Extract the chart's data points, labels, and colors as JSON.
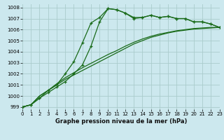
{
  "title": "Graphe pression niveau de la mer (hPa)",
  "bg_color": "#cce8ee",
  "grid_color": "#aacccc",
  "line_color": "#1a6b1a",
  "xlim": [
    0,
    23
  ],
  "ylim": [
    998.8,
    1008.3
  ],
  "xticks": [
    0,
    1,
    2,
    3,
    4,
    5,
    6,
    7,
    8,
    9,
    10,
    11,
    12,
    13,
    14,
    15,
    16,
    17,
    18,
    19,
    20,
    21,
    22,
    23
  ],
  "yticks": [
    999,
    1000,
    1001,
    1002,
    1003,
    1004,
    1005,
    1006,
    1007,
    1008
  ],
  "series_top": [
    999.0,
    999.2,
    999.8,
    1000.5,
    1001.0,
    1002.0,
    1003.1,
    1004.8,
    1006.6,
    1007.1,
    1007.9,
    1007.8,
    1007.5,
    1007.1,
    1007.1,
    1007.3,
    1007.1,
    1007.2,
    1007.0,
    1007.0,
    1006.7,
    1006.7,
    1006.5,
    1006.2
  ],
  "series_mid": [
    999.0,
    999.2,
    999.8,
    1000.3,
    1000.8,
    1001.3,
    1002.0,
    1002.8,
    1004.5,
    1006.7,
    1007.9,
    1007.8,
    1007.5,
    1007.0,
    1007.1,
    1007.3,
    1007.1,
    1007.2,
    1007.0,
    1007.0,
    1006.7,
    1006.7,
    1006.5,
    1006.2
  ],
  "series_low1": [
    999.0,
    999.2,
    1000.0,
    1000.5,
    1001.0,
    1001.5,
    1001.9,
    1002.3,
    1002.7,
    1003.1,
    1003.5,
    1003.9,
    1004.3,
    1004.7,
    1005.0,
    1005.3,
    1005.5,
    1005.7,
    1005.85,
    1005.95,
    1006.05,
    1006.1,
    1006.15,
    1006.2
  ],
  "series_low2": [
    999.0,
    999.2,
    1000.0,
    1000.5,
    1001.1,
    1001.65,
    1002.1,
    1002.55,
    1002.95,
    1003.35,
    1003.75,
    1004.1,
    1004.5,
    1004.85,
    1005.15,
    1005.4,
    1005.6,
    1005.75,
    1005.9,
    1006.0,
    1006.1,
    1006.15,
    1006.2,
    1006.2
  ]
}
